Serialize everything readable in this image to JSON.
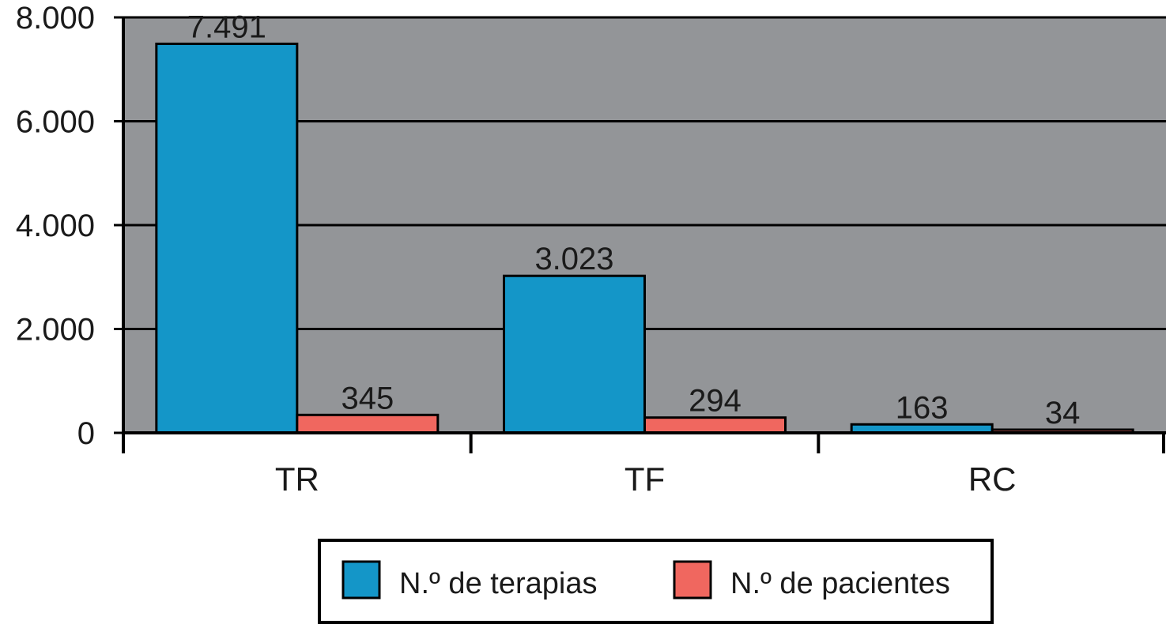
{
  "chart_data": {
    "type": "bar",
    "categories": [
      "TR",
      "TF",
      "RC"
    ],
    "series": [
      {
        "name": "N.º de terapias",
        "values": [
          7491,
          3023,
          163
        ],
        "labels": [
          "7.491",
          "3.023",
          "163"
        ],
        "color": "#1496c8"
      },
      {
        "name": "N.º de pacientes",
        "values": [
          345,
          294,
          34
        ],
        "labels": [
          "345",
          "294",
          "34"
        ],
        "color": "#f0675f"
      }
    ],
    "y_ticks": [
      0,
      2000,
      4000,
      6000,
      8000
    ],
    "y_tick_labels": [
      "0",
      "2.000",
      "4.000",
      "6.000",
      "8.000"
    ],
    "ylim": [
      0,
      8000
    ],
    "grid": true,
    "plot_background": "#939598",
    "legend_position": "bottom-center"
  }
}
